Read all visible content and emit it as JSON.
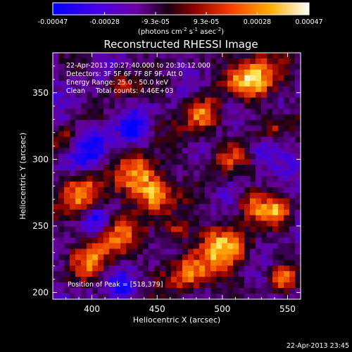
{
  "colorbar": {
    "tick_labels": [
      "-0.00047",
      "-0.00028",
      "-9.3e-05",
      "9.3e-05",
      "0.00028",
      "0.00047"
    ],
    "tick_values": [
      -0.00047,
      -0.00028,
      -9.3e-05,
      9.3e-05,
      0.00028,
      0.00047
    ],
    "units_prefix": "(photons cm",
    "units_exp1": "-2",
    "units_mid": " s",
    "units_exp2": "-1",
    "units_mid2": " asec",
    "units_exp3": "-2",
    "units_suffix": ")"
  },
  "chart_data": {
    "type": "heatmap",
    "title": "Reconstructed RHESSI Image",
    "xlabel": "Heliocentric X (arcsec)",
    "ylabel": "Heliocentric Y (arcsec)",
    "xlim": [
      370,
      560
    ],
    "ylim": [
      195,
      380
    ],
    "xticks": [
      400,
      450,
      500,
      550
    ],
    "yticks": [
      200,
      250,
      300,
      350
    ],
    "colorscale": [
      "#0000ff",
      "#6a00c8",
      "#000000",
      "#c81e00",
      "#ff8c00",
      "#ffff80",
      "#ffffff"
    ],
    "info_lines": [
      "22-Apr-2013 20:27:40.000 to 20:30:12.000",
      "Detectors: 3F 5F 6F 7F 8F 9F, Att 0",
      "Energy Range: 25.0 - 50.0 keV",
      "Clean     Total counts: 4.46E+03"
    ],
    "peak_label": "Position of Peak = [518,379]",
    "peak": [
      518,
      379
    ]
  },
  "footer": {
    "timestamp": "22-Apr-2013 23:45"
  }
}
